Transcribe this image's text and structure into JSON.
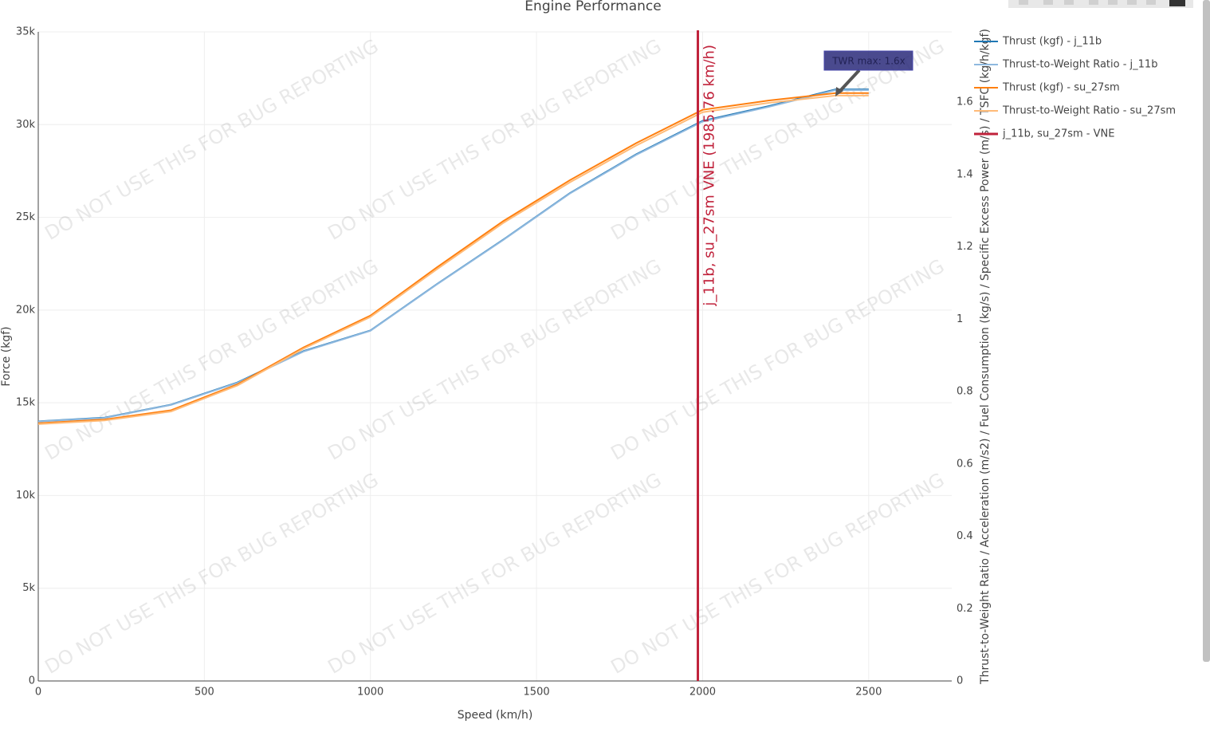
{
  "chart_data": {
    "type": "line",
    "title": "Engine Performance",
    "x_label": "Speed (km/h)",
    "y_label": "Force (kgf)",
    "y2_label": "Thrust-to-Weight Ratio / Acceleration (m/s2) / Fuel Consumption (kg/s) / Specific Excess Power (m/s) / TSFC (kg/h/kgf)",
    "x": [
      0,
      200,
      400,
      600,
      800,
      1000,
      1200,
      1400,
      1600,
      1800,
      2000,
      2200,
      2400,
      2500
    ],
    "series": [
      {
        "name": "Thrust (kgf) - j_11b",
        "color": "#1f77b4",
        "axis": "y",
        "values": [
          14000,
          14200,
          14900,
          16100,
          17800,
          18900,
          21400,
          23800,
          26300,
          28400,
          30200,
          31000,
          31900,
          31900
        ]
      },
      {
        "name": "Thrust-to-Weight Ratio - j_11b",
        "color": "#8fb9df",
        "axis": "y2",
        "values": [
          0.717,
          0.727,
          0.763,
          0.824,
          0.911,
          0.968,
          1.096,
          1.219,
          1.347,
          1.454,
          1.546,
          1.587,
          1.633,
          1.633
        ]
      },
      {
        "name": "Thrust (kgf) - su_27sm",
        "color": "#ff7f0e",
        "axis": "y",
        "values": [
          13900,
          14100,
          14600,
          16000,
          18000,
          19700,
          22300,
          24800,
          27000,
          29000,
          30800,
          31300,
          31700,
          31700
        ]
      },
      {
        "name": "Thrust-to-Weight Ratio - su_27sm",
        "color": "#ffbb78",
        "axis": "y2",
        "values": [
          0.71,
          0.72,
          0.745,
          0.817,
          0.919,
          1.006,
          1.138,
          1.266,
          1.378,
          1.48,
          1.572,
          1.598,
          1.618,
          1.618
        ]
      }
    ],
    "vne": {
      "x": 1985.76,
      "label": "j_11b, su_27sm VNE (1985.76 km/h)",
      "name": "j_11b, su_27sm - VNE",
      "color": "#c0223b"
    },
    "annotation": "TWR max: 1.6x",
    "watermark": "DO NOT USE THIS FOR BUG REPORTING",
    "xlim": [
      0,
      2750
    ],
    "xticks": [
      0,
      500,
      1000,
      1500,
      2000,
      2500
    ],
    "ylim": [
      0,
      35000
    ],
    "yticks": [
      0,
      {
        "value": 5000,
        "label": "5k"
      },
      {
        "value": 10000,
        "label": "10k"
      },
      {
        "value": 15000,
        "label": "15k"
      },
      {
        "value": 20000,
        "label": "20k"
      },
      {
        "value": 25000,
        "label": "25k"
      },
      {
        "value": 30000,
        "label": "30k"
      },
      {
        "value": 35000,
        "label": "35k"
      }
    ],
    "y2lim": [
      0,
      1.794
    ],
    "y2ticks": [
      0,
      0.2,
      0.4,
      0.6,
      0.8,
      1,
      1.2,
      1.4,
      1.6
    ],
    "grid": true
  }
}
